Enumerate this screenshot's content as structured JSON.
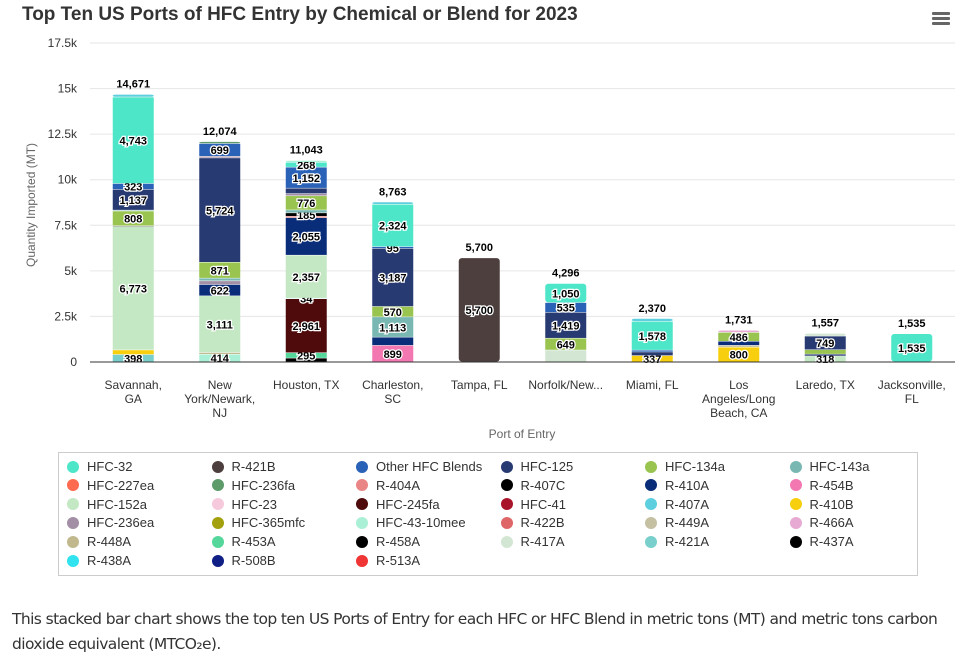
{
  "title": "Top Ten US Ports of HFC Entry by Chemical or Blend for 2023",
  "menu_icon": "hamburger-menu-icon",
  "caption": "This stacked bar chart shows the top ten US Ports of Entry for each HFC or HFC Blend in metric tons (MT) and metric tons carbon dioxide equivalent (MTCO₂e).",
  "chart_data": {
    "type": "bar",
    "stacked": true,
    "title": "Top Ten US Ports of HFC Entry by Chemical or Blend for 2023",
    "xlabel": "Port of Entry",
    "ylabel": "Quantity Imported (MT)",
    "ylim": [
      0,
      17500
    ],
    "yticks": [
      "0",
      "2.5k",
      "5k",
      "7.5k",
      "10k",
      "12.5k",
      "15k",
      "17.5k"
    ],
    "ytick_values": [
      0,
      2500,
      5000,
      7500,
      10000,
      12500,
      15000,
      17500
    ],
    "grid": true,
    "legend_position": "bottom",
    "categories": [
      "Savannah, GA",
      "New York/Newark, NJ",
      "Houston, TX",
      "Charleston, SC",
      "Tampa, FL",
      "Norfolk/New...",
      "Miami, FL",
      "Los Angeles/Long Beach, CA",
      "Laredo, TX",
      "Jacksonville, FL"
    ],
    "totals": [
      "14,671",
      "12,074",
      "11,043",
      "8,763",
      "5,700",
      "4,296",
      "2,370",
      "1,731",
      "1,557",
      "1,535"
    ],
    "colors": {
      "HFC-32": "#4ee6c9",
      "R-421B": "#4e3f3f",
      "Other HFC Blends": "#2a62b8",
      "HFC-125": "#283a72",
      "HFC-134a": "#99c44f",
      "HFC-143a": "#79b8b2",
      "HFC-227ea": "#ff6b4e",
      "HFC-236fa": "#5e9b6a",
      "R-404A": "#e98585",
      "R-407C": "#000000",
      "R-410A": "#0a2d7a",
      "R-454B": "#f377b0",
      "HFC-152a": "#c3e8c3",
      "HFC-23": "#f7c9dd",
      "HFC-245fa": "#4f0b0b",
      "HFC-41": "#a8152a",
      "R-407A": "#5ecfdf",
      "R-410B": "#f8cf0f",
      "HFC-236ea": "#a38fa5",
      "HFC-365mfc": "#a2a10d",
      "HFC-43-10mee": "#aaf0d6",
      "R-422B": "#df6666",
      "R-449A": "#c4c0a1",
      "R-466A": "#e7abd3",
      "R-448A": "#c1b88e",
      "R-453A": "#55d69a",
      "R-458A": "#000000",
      "R-417A": "#d3e6d3",
      "R-421A": "#78cfcb",
      "R-437A": "#000000",
      "R-438A": "#30e3ef",
      "R-508B": "#0f1f86",
      "R-513A": "#f03535"
    },
    "legend": [
      "HFC-32",
      "R-421B",
      "Other HFC Blends",
      "HFC-125",
      "HFC-134a",
      "HFC-143a",
      "HFC-227ea",
      "HFC-236fa",
      "R-404A",
      "R-407C",
      "R-410A",
      "R-454B",
      "HFC-152a",
      "HFC-23",
      "HFC-245fa",
      "HFC-41",
      "R-407A",
      "R-410B",
      "HFC-236ea",
      "HFC-365mfc",
      "HFC-43-10mee",
      "R-422B",
      "R-449A",
      "R-466A",
      "R-448A",
      "R-453A",
      "R-458A",
      "R-417A",
      "R-421A",
      "R-437A",
      "R-438A",
      "R-508B",
      "R-513A"
    ],
    "stacks": [
      [
        {
          "s": "R-421A",
          "v": 398,
          "label": "398"
        },
        {
          "s": "R-410B",
          "v": 250
        },
        {
          "s": "HFC-152a",
          "v": 6773,
          "label": "6,773"
        },
        {
          "s": "R-407C",
          "v": 39
        },
        {
          "s": "HFC-134a",
          "v": 808,
          "label": "808"
        },
        {
          "s": "HFC-143a",
          "v": 50
        },
        {
          "s": "HFC-125",
          "v": 1137,
          "label": "1,137"
        },
        {
          "s": "Other HFC Blends",
          "v": 323,
          "label": "323"
        },
        {
          "s": "HFC-32",
          "v": 4743,
          "label": "4,743"
        },
        {
          "s": "R-407A",
          "v": 150
        }
      ],
      [
        {
          "s": "HFC-43-10mee",
          "v": 414,
          "label": "414"
        },
        {
          "s": "R-448A",
          "v": 90
        },
        {
          "s": "HFC-152a",
          "v": 3111,
          "label": "3,111"
        },
        {
          "s": "R-410A",
          "v": 622,
          "label": "622"
        },
        {
          "s": "HFC-236ea",
          "v": 200
        },
        {
          "s": "HFC-143a",
          "v": 150
        },
        {
          "s": "HFC-134a",
          "v": 871,
          "label": "871"
        },
        {
          "s": "HFC-125",
          "v": 5724,
          "label": "5,724"
        },
        {
          "s": "HFC-236ea",
          "v": 90
        },
        {
          "s": "Other HFC Blends",
          "v": 699,
          "label": "699"
        },
        {
          "s": "HFC-236fa",
          "v": 103
        }
      ],
      [
        {
          "s": "R-407C",
          "v": 200
        },
        {
          "s": "R-453A",
          "v": 295,
          "label": "295"
        },
        {
          "s": "HFC-245fa",
          "v": 2961,
          "label": "2,961"
        },
        {
          "s": "HFC-32",
          "v": 34,
          "label": "34"
        },
        {
          "s": "HFC-152a",
          "v": 2357,
          "label": "2,357"
        },
        {
          "s": "R-410A",
          "v": 2055,
          "label": "2,055"
        },
        {
          "s": "R-422B",
          "v": 80
        },
        {
          "s": "R-407C",
          "v": 185,
          "label": "185"
        },
        {
          "s": "HFC-143a",
          "v": 160
        },
        {
          "s": "HFC-134a",
          "v": 776,
          "label": "776"
        },
        {
          "s": "HFC-236ea",
          "v": 120
        },
        {
          "s": "HFC-125",
          "v": 300
        },
        {
          "s": "Other HFC Blends",
          "v": 1152,
          "label": "1,152"
        },
        {
          "s": "HFC-32",
          "v": 268,
          "label": "268"
        },
        {
          "s": "HFC-43-10mee",
          "v": 100
        }
      ],
      [
        {
          "s": "R-454B",
          "v": 899,
          "label": "899"
        },
        {
          "s": "R-410A",
          "v": 450
        },
        {
          "s": "HFC-143a",
          "v": 1113,
          "label": "1,113"
        },
        {
          "s": "HFC-134a",
          "v": 570,
          "label": "570"
        },
        {
          "s": "HFC-125",
          "v": 3187,
          "label": "3,187"
        },
        {
          "s": "Other HFC Blends",
          "v": 95,
          "label": "95"
        },
        {
          "s": "HFC-32",
          "v": 2324,
          "label": "2,324"
        },
        {
          "s": "R-407A",
          "v": 125
        }
      ],
      [
        {
          "s": "R-421B",
          "v": 5700,
          "label": "5,700"
        }
      ],
      [
        {
          "s": "R-417A",
          "v": 643
        },
        {
          "s": "HFC-134a",
          "v": 649,
          "label": "649"
        },
        {
          "s": "HFC-125",
          "v": 1419,
          "label": "1,419"
        },
        {
          "s": "Other HFC Blends",
          "v": 535,
          "label": "535"
        },
        {
          "s": "HFC-32",
          "v": 1050,
          "label": "1,050"
        }
      ],
      [
        {
          "s": "R-410B",
          "v": 337,
          "label": "337"
        },
        {
          "s": "HFC-125",
          "v": 200
        },
        {
          "s": "Other HFC Blends",
          "v": 100
        },
        {
          "s": "HFC-32",
          "v": 1578,
          "label": "1,578"
        },
        {
          "s": "R-407A",
          "v": 155
        }
      ],
      [
        {
          "s": "R-410B",
          "v": 800,
          "label": "800"
        },
        {
          "s": "R-449A",
          "v": 100
        },
        {
          "s": "R-410A",
          "v": 225
        },
        {
          "s": "HFC-134a",
          "v": 486,
          "label": "486"
        },
        {
          "s": "R-466A",
          "v": 120
        }
      ],
      [
        {
          "s": "HFC-152a",
          "v": 318,
          "label": "318"
        },
        {
          "s": "HFC-125",
          "v": 100
        },
        {
          "s": "HFC-134a",
          "v": 240
        },
        {
          "s": "HFC-125",
          "v": 749,
          "label": "749"
        },
        {
          "s": "R-417A",
          "v": 150
        }
      ],
      [
        {
          "s": "HFC-32",
          "v": 1535,
          "label": "1,535"
        }
      ]
    ]
  }
}
